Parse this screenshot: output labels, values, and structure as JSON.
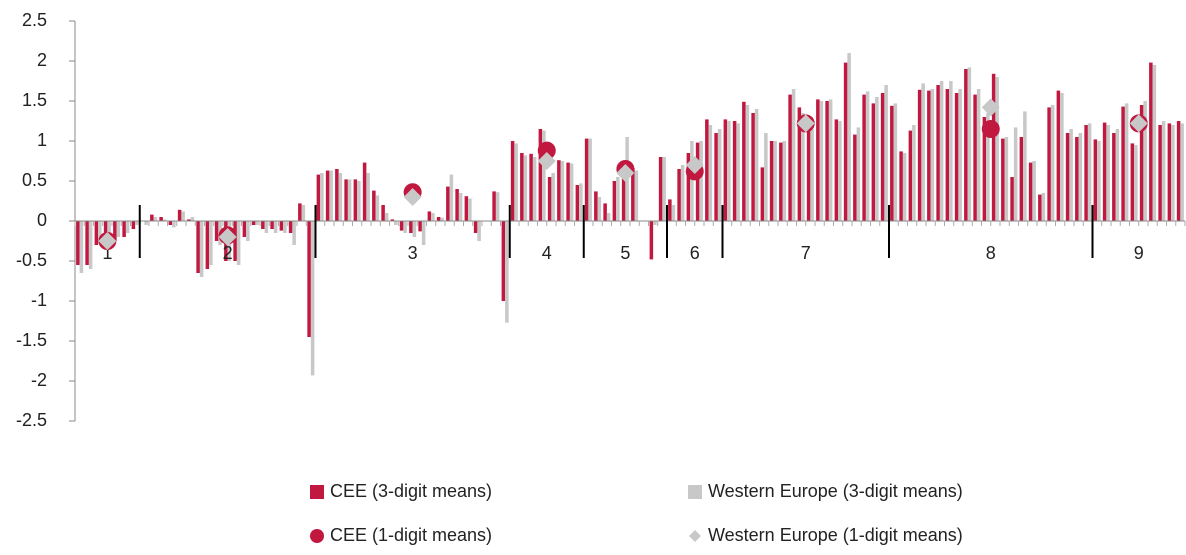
{
  "chart_data": {
    "type": "bar",
    "ylim": [
      -2.5,
      2.5
    ],
    "yticks": [
      2.5,
      2,
      1.5,
      1,
      0.5,
      0,
      -0.5,
      -1,
      -1.5,
      -2,
      -2.5
    ],
    "groups": [
      {
        "label": "1",
        "size": 7
      },
      {
        "label": "2",
        "size": 19
      },
      {
        "label": "3",
        "size": 21
      },
      {
        "label": "4",
        "size": 8
      },
      {
        "label": "5",
        "size": 9
      },
      {
        "label": "6",
        "size": 6
      },
      {
        "label": "7",
        "size": 18
      },
      {
        "label": "8",
        "size": 22
      },
      {
        "label": "9",
        "size": 10
      }
    ],
    "series": [
      {
        "name": "CEE (3-digit means)",
        "color": "#c0183f",
        "kind": "bar",
        "marker": "square",
        "values": [
          -0.55,
          -0.55,
          -0.3,
          -0.35,
          -0.25,
          -0.2,
          -0.1,
          0.0,
          0.08,
          0.05,
          -0.05,
          0.14,
          0.02,
          -0.65,
          -0.6,
          -0.25,
          -0.5,
          -0.5,
          -0.2,
          -0.05,
          -0.1,
          -0.1,
          -0.12,
          -0.15,
          0.22,
          -1.45,
          0.58,
          0.63,
          0.65,
          0.52,
          0.52,
          0.73,
          0.38,
          0.2,
          0.02,
          -0.12,
          -0.15,
          -0.13,
          0.12,
          0.05,
          0.43,
          0.4,
          0.31,
          -0.15,
          0.0,
          0.37,
          -1.0,
          1.0,
          0.85,
          0.84,
          1.15,
          0.55,
          0.76,
          0.73,
          0.45,
          1.03,
          0.37,
          0.22,
          0.5,
          0.7,
          0.66,
          0.0,
          -0.48,
          0.8,
          0.27,
          0.65,
          0.85,
          0.98,
          1.27,
          1.1,
          1.27,
          1.25,
          1.49,
          1.35,
          0.67,
          1.0,
          0.98,
          1.58,
          1.42,
          1.17,
          1.52,
          1.5,
          1.27,
          1.98,
          1.08,
          1.58,
          1.47,
          1.6,
          1.44,
          0.87,
          1.13,
          1.64,
          1.63,
          1.7,
          1.65,
          1.6,
          1.9,
          1.58,
          1.3,
          1.84,
          1.03,
          0.55,
          1.05,
          0.73,
          0.33,
          1.42,
          1.63,
          1.1,
          1.05,
          1.2,
          1.02,
          1.23,
          1.1,
          1.43,
          0.97,
          1.45,
          1.98,
          1.2,
          1.22,
          1.25
        ]
      },
      {
        "name": "Western Europe (3-digit means)",
        "color": "#c8c8c8",
        "kind": "bar",
        "marker": "square",
        "values": [
          -0.65,
          -0.6,
          -0.25,
          -0.3,
          -0.2,
          -0.15,
          -0.05,
          -0.05,
          0.05,
          0.02,
          -0.08,
          0.12,
          0.05,
          -0.7,
          -0.55,
          -0.3,
          -0.5,
          -0.55,
          -0.25,
          -0.05,
          -0.15,
          -0.15,
          -0.15,
          -0.3,
          0.2,
          -1.93,
          0.6,
          0.63,
          0.6,
          0.52,
          0.5,
          0.6,
          0.32,
          0.1,
          -0.05,
          -0.15,
          -0.2,
          -0.3,
          0.1,
          0.04,
          0.58,
          0.35,
          0.28,
          -0.25,
          0.0,
          0.36,
          -1.27,
          0.97,
          0.82,
          0.8,
          1.13,
          0.6,
          0.75,
          0.72,
          0.47,
          1.03,
          0.3,
          0.1,
          0.55,
          1.05,
          0.63,
          0.0,
          -0.05,
          0.8,
          0.2,
          0.7,
          1.0,
          1.0,
          1.2,
          1.15,
          1.25,
          1.22,
          1.45,
          1.4,
          1.1,
          1.0,
          1.0,
          1.65,
          1.35,
          1.15,
          1.5,
          1.52,
          1.25,
          2.1,
          1.17,
          1.62,
          1.55,
          1.7,
          1.47,
          0.85,
          1.2,
          1.72,
          1.65,
          1.75,
          1.75,
          1.65,
          1.92,
          1.65,
          1.35,
          1.8,
          1.05,
          1.17,
          1.37,
          0.75,
          0.35,
          1.45,
          1.6,
          1.15,
          1.1,
          1.22,
          1.0,
          1.2,
          1.15,
          1.47,
          0.95,
          1.5,
          1.95,
          1.25,
          1.2,
          1.22
        ]
      },
      {
        "name": "CEE (1-digit means)",
        "color": "#c0183f",
        "kind": "point",
        "marker": "circle",
        "values": [
          -0.25,
          -0.18,
          0.36,
          0.88,
          0.65,
          0.62,
          1.22,
          1.15,
          1.22
        ]
      },
      {
        "name": "Western Europe (1-digit means)",
        "color": "#c8c8c8",
        "kind": "point",
        "marker": "diamond",
        "values": [
          -0.25,
          -0.2,
          0.3,
          0.75,
          0.6,
          0.7,
          1.22,
          1.42,
          1.22
        ]
      }
    ]
  }
}
